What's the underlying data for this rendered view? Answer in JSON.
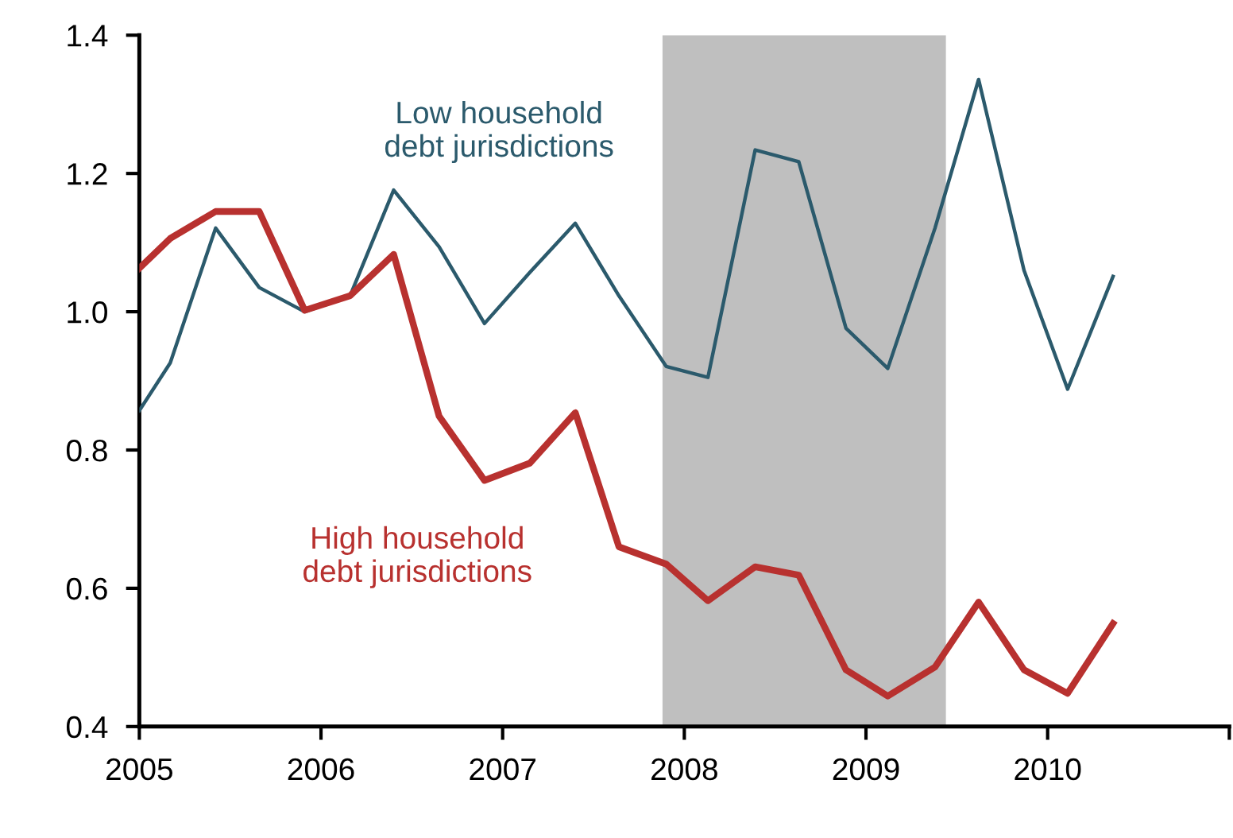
{
  "chart_data": {
    "type": "line",
    "x": [
      2005.0,
      2005.17,
      2005.42,
      2005.66,
      2005.91,
      2006.16,
      2006.4,
      2006.65,
      2006.9,
      2007.15,
      2007.4,
      2007.64,
      2007.9,
      2008.13,
      2008.39,
      2008.63,
      2008.89,
      2009.12,
      2009.38,
      2009.62,
      2009.87,
      2010.11,
      2010.36
    ],
    "series": [
      {
        "name": "Low household debt jurisdictions",
        "color": "#2b5a6c",
        "values": [
          0.857,
          0.926,
          1.121,
          1.035,
          1.0,
          1.023,
          1.176,
          1.094,
          0.983,
          1.057,
          1.128,
          1.023,
          0.921,
          0.905,
          1.234,
          1.217,
          0.976,
          0.918,
          1.121,
          1.336,
          1.06,
          0.888,
          1.051
        ]
      },
      {
        "name": "High household debt jurisdictions",
        "color": "#b8312f",
        "values": [
          1.063,
          1.106,
          1.145,
          1.145,
          1.002,
          1.023,
          1.083,
          0.849,
          0.756,
          0.781,
          0.854,
          0.66,
          0.635,
          0.582,
          0.631,
          0.619,
          0.482,
          0.444,
          0.486,
          0.58,
          0.482,
          0.448,
          0.549
        ]
      }
    ],
    "xlim": [
      2005,
      2011
    ],
    "xticks": [
      {
        "value": 2005,
        "label": "2005"
      },
      {
        "value": 2006,
        "label": "2006"
      },
      {
        "value": 2007,
        "label": "2007"
      },
      {
        "value": 2008,
        "label": "2008"
      },
      {
        "value": 2009,
        "label": "2009"
      },
      {
        "value": 2010,
        "label": "2010"
      },
      {
        "value": 2011,
        "label": null
      }
    ],
    "ylim": [
      0.4,
      1.4
    ],
    "yticks": [
      {
        "value": 0.4,
        "label": "0.4"
      },
      {
        "value": 0.6,
        "label": "0.6"
      },
      {
        "value": 0.8,
        "label": "0.8"
      },
      {
        "value": 1.0,
        "label": "1.0"
      },
      {
        "value": 1.2,
        "label": "1.2"
      },
      {
        "value": 1.4,
        "label": "1.4"
      }
    ],
    "bands": [
      {
        "axis": "x",
        "from": 2007.88,
        "to": 2009.44,
        "color": "#bfbfbf"
      }
    ],
    "grid": false,
    "legend": false,
    "marker": "none",
    "line_style": "solid"
  }
}
